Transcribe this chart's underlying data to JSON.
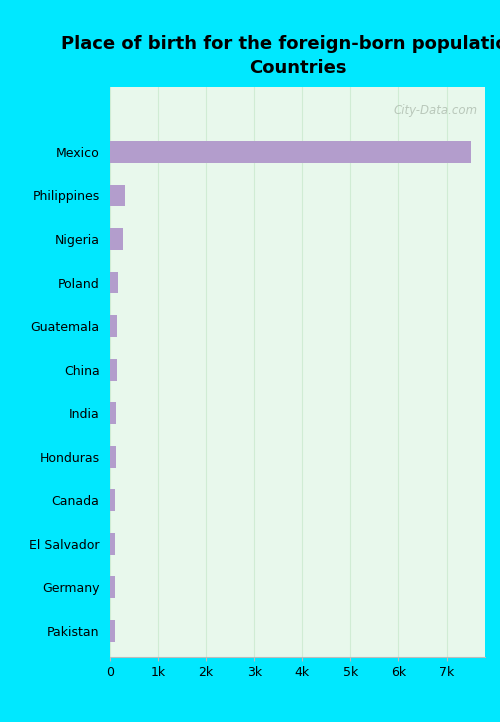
{
  "title": "Place of birth for the foreign-born population -\nCountries",
  "categories": [
    "Mexico",
    "Philippines",
    "Nigeria",
    "Poland",
    "Guatemala",
    "China",
    "India",
    "Honduras",
    "Canada",
    "El Salvador",
    "Germany",
    "Pakistan"
  ],
  "values": [
    7500,
    320,
    270,
    175,
    155,
    145,
    135,
    120,
    110,
    105,
    100,
    95
  ],
  "bar_color": "#b39dcc",
  "plot_bg_color": "#e8f8ec",
  "outer_background": "#00e8ff",
  "grid_color": "#d0ecd4",
  "xlim": [
    0,
    7800
  ],
  "xticks": [
    0,
    1000,
    2000,
    3000,
    4000,
    5000,
    6000,
    7000
  ],
  "xticklabels": [
    "0",
    "1k",
    "2k",
    "3k",
    "4k",
    "5k",
    "6k",
    "7k"
  ],
  "watermark": "City-Data.com",
  "title_fontsize": 13,
  "tick_fontsize": 9,
  "label_fontsize": 9
}
